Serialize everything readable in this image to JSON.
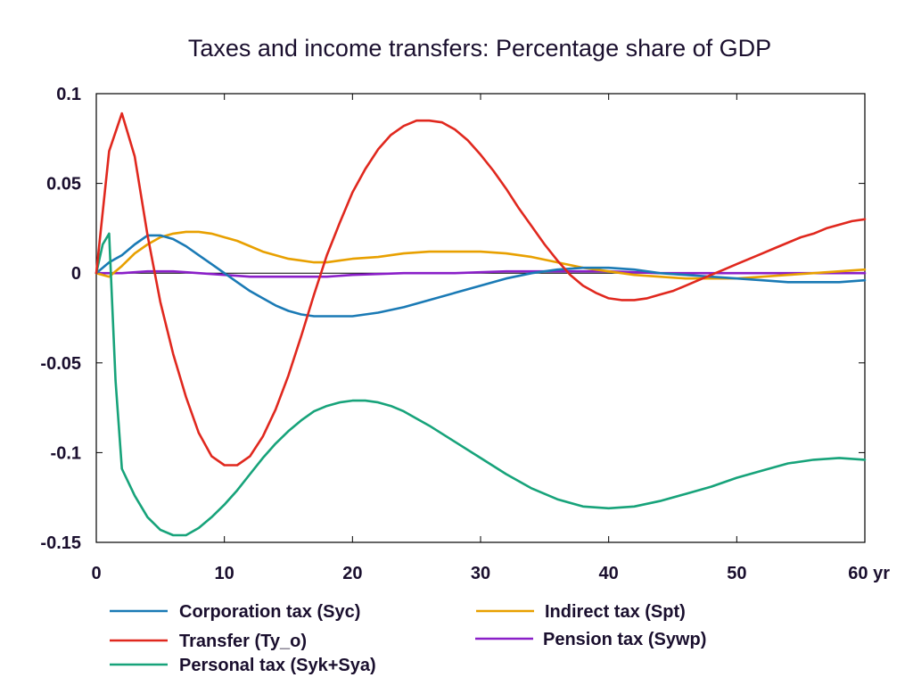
{
  "chart_data": {
    "type": "line",
    "title": "Taxes and income transfers: Percentage share of GDP",
    "xlabel": "",
    "ylabel": "",
    "x_unit_label": "yr",
    "xlim": [
      0,
      60
    ],
    "ylim": [
      -0.15,
      0.1
    ],
    "x_ticks": [
      0,
      10,
      20,
      30,
      40,
      50,
      60
    ],
    "x_tick_labels": [
      "0",
      "10",
      "20",
      "30",
      "40",
      "50",
      "60 yr"
    ],
    "y_ticks": [
      0.1,
      0.05,
      0,
      -0.05,
      -0.1,
      -0.15
    ],
    "y_tick_labels": [
      "0.1",
      "0.05",
      "0",
      "-0.05",
      "-0.1",
      "-0.15"
    ],
    "grid": false,
    "zero_line": true,
    "legend_position": "bottom",
    "series": [
      {
        "name": "Corporation tax (Syc)",
        "color": "#1a7ab5",
        "x": [
          0,
          1,
          2,
          3,
          4,
          5,
          6,
          7,
          8,
          9,
          10,
          11,
          12,
          13,
          14,
          15,
          16,
          17,
          18,
          19,
          20,
          22,
          24,
          26,
          28,
          30,
          32,
          34,
          36,
          38,
          40,
          42,
          44,
          46,
          48,
          50,
          52,
          54,
          56,
          58,
          60
        ],
        "y": [
          0,
          0.006,
          0.01,
          0.016,
          0.021,
          0.021,
          0.019,
          0.015,
          0.01,
          0.005,
          0.0,
          -0.005,
          -0.01,
          -0.014,
          -0.018,
          -0.021,
          -0.023,
          -0.024,
          -0.024,
          -0.024,
          -0.024,
          -0.022,
          -0.019,
          -0.015,
          -0.011,
          -0.007,
          -0.003,
          0.0,
          0.002,
          0.003,
          0.003,
          0.002,
          0.0,
          -0.001,
          -0.002,
          -0.003,
          -0.004,
          -0.005,
          -0.005,
          -0.005,
          -0.004
        ]
      },
      {
        "name": "Indirect tax (Spt)",
        "color": "#e8a000",
        "x": [
          0,
          1,
          2,
          3,
          4,
          5,
          6,
          7,
          8,
          9,
          10,
          11,
          12,
          13,
          14,
          15,
          16,
          17,
          18,
          19,
          20,
          22,
          24,
          26,
          28,
          30,
          32,
          34,
          36,
          38,
          40,
          42,
          44,
          46,
          48,
          50,
          52,
          54,
          56,
          58,
          60
        ],
        "y": [
          0,
          -0.002,
          0.004,
          0.011,
          0.016,
          0.02,
          0.022,
          0.023,
          0.023,
          0.022,
          0.02,
          0.018,
          0.015,
          0.012,
          0.01,
          0.008,
          0.007,
          0.006,
          0.006,
          0.007,
          0.008,
          0.009,
          0.011,
          0.012,
          0.012,
          0.012,
          0.011,
          0.009,
          0.006,
          0.003,
          0.001,
          -0.001,
          -0.002,
          -0.003,
          -0.003,
          -0.003,
          -0.002,
          -0.001,
          0.0,
          0.001,
          0.002
        ]
      },
      {
        "name": "Transfer (Ty_o)",
        "color": "#e0281e",
        "x": [
          0,
          1,
          2,
          3,
          4,
          5,
          6,
          7,
          8,
          9,
          10,
          11,
          12,
          13,
          14,
          15,
          16,
          17,
          18,
          19,
          20,
          21,
          22,
          23,
          24,
          25,
          26,
          27,
          28,
          29,
          30,
          31,
          32,
          33,
          34,
          35,
          36,
          37,
          38,
          39,
          40,
          41,
          42,
          43,
          44,
          45,
          46,
          47,
          48,
          49,
          50,
          51,
          52,
          53,
          54,
          55,
          56,
          57,
          58,
          59,
          60
        ],
        "y": [
          0,
          0.068,
          0.089,
          0.065,
          0.021,
          -0.016,
          -0.045,
          -0.069,
          -0.089,
          -0.102,
          -0.107,
          -0.107,
          -0.102,
          -0.091,
          -0.076,
          -0.057,
          -0.035,
          -0.012,
          0.01,
          0.028,
          0.045,
          0.058,
          0.069,
          0.077,
          0.082,
          0.085,
          0.085,
          0.084,
          0.08,
          0.074,
          0.066,
          0.057,
          0.047,
          0.036,
          0.026,
          0.016,
          0.007,
          -0.001,
          -0.007,
          -0.011,
          -0.014,
          -0.015,
          -0.015,
          -0.014,
          -0.012,
          -0.01,
          -0.007,
          -0.004,
          -0.001,
          0.002,
          0.005,
          0.008,
          0.011,
          0.014,
          0.017,
          0.02,
          0.022,
          0.025,
          0.027,
          0.029,
          0.03
        ]
      },
      {
        "name": "Pension tax (Sywp)",
        "color": "#8a1fc8",
        "x": [
          0,
          2,
          4,
          6,
          8,
          10,
          12,
          14,
          16,
          18,
          20,
          24,
          28,
          32,
          36,
          40,
          44,
          48,
          52,
          56,
          60
        ],
        "y": [
          0,
          0.0,
          0.001,
          0.001,
          0.0,
          -0.001,
          -0.002,
          -0.002,
          -0.002,
          -0.002,
          -0.001,
          0.0,
          0.0,
          0.001,
          0.001,
          0.001,
          0.0,
          0.0,
          0.0,
          0.0,
          0.0
        ]
      },
      {
        "name": "Personal tax (Syk+Sya)",
        "color": "#17a37a",
        "x": [
          0,
          0.5,
          1,
          1.5,
          2,
          3,
          4,
          5,
          6,
          7,
          8,
          9,
          10,
          11,
          12,
          13,
          14,
          15,
          16,
          17,
          18,
          19,
          20,
          21,
          22,
          23,
          24,
          25,
          26,
          28,
          30,
          32,
          34,
          36,
          38,
          40,
          42,
          44,
          46,
          48,
          50,
          52,
          54,
          56,
          58,
          60
        ],
        "y": [
          0,
          0.016,
          0.022,
          -0.06,
          -0.109,
          -0.124,
          -0.136,
          -0.143,
          -0.146,
          -0.146,
          -0.142,
          -0.136,
          -0.129,
          -0.121,
          -0.112,
          -0.103,
          -0.095,
          -0.088,
          -0.082,
          -0.077,
          -0.074,
          -0.072,
          -0.071,
          -0.071,
          -0.072,
          -0.074,
          -0.077,
          -0.081,
          -0.085,
          -0.094,
          -0.103,
          -0.112,
          -0.12,
          -0.126,
          -0.13,
          -0.131,
          -0.13,
          -0.127,
          -0.123,
          -0.119,
          -0.114,
          -0.11,
          -0.106,
          -0.104,
          -0.103,
          -0.104
        ]
      }
    ],
    "legend_order": [
      "Corporation tax (Syc)",
      "Indirect tax (Spt)",
      "Transfer (Ty_o)",
      "Pension tax (Sywp)",
      "Personal tax (Syk+Sya)"
    ]
  }
}
